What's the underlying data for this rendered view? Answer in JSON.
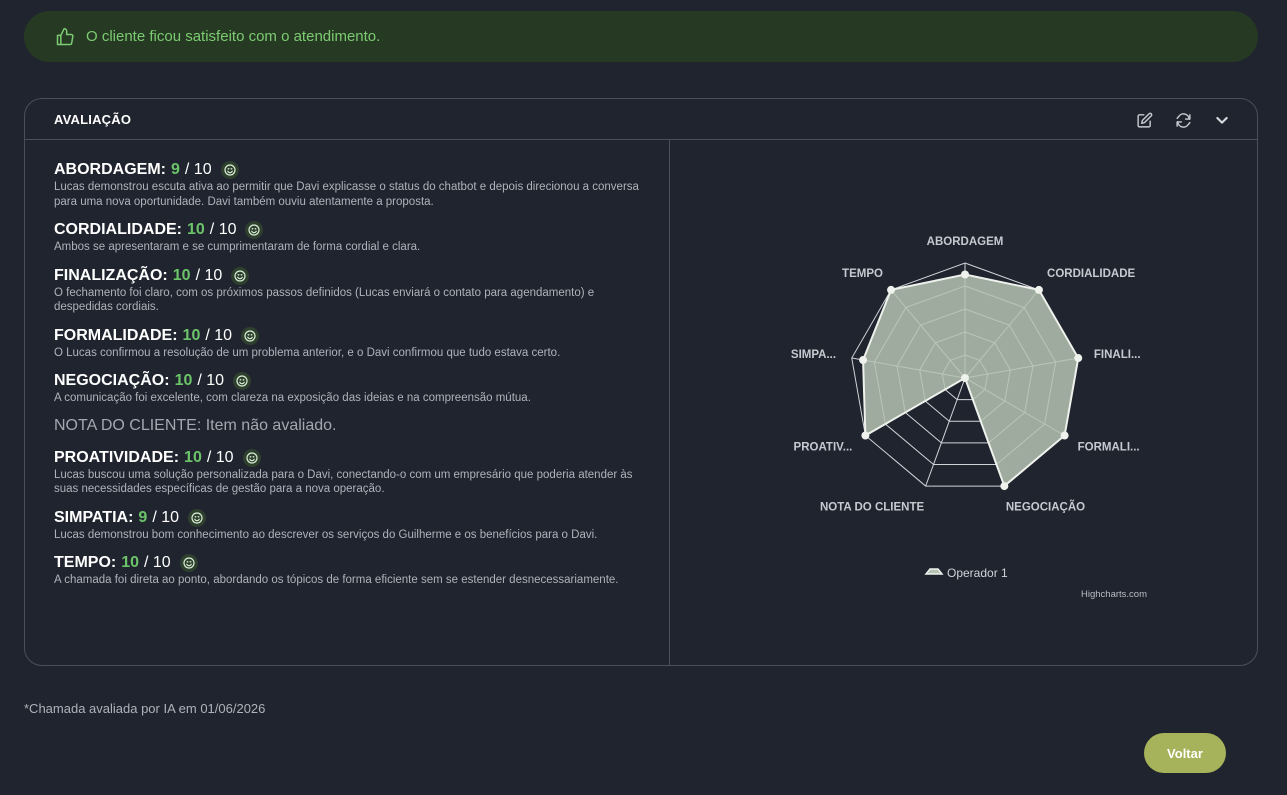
{
  "banner": {
    "text": "O cliente ficou satisfeito com o atendimento.",
    "icon": "thumbs-up-icon"
  },
  "card": {
    "title": "AVALIAÇÃO",
    "actions": [
      "edit-icon",
      "refresh-icon",
      "chevron-down-icon"
    ],
    "items": [
      {
        "label": "ABORDAGEM:",
        "score": "9",
        "max": "/ 10",
        "desc": "Lucas demonstrou escuta ativa ao permitir que Davi explicasse o status do chatbot e depois direcionou a conversa para uma nova oportunidade. Davi também ouviu atentamente a proposta."
      },
      {
        "label": "CORDIALIDADE:",
        "score": "10",
        "max": "/ 10",
        "desc": "Ambos se apresentaram e se cumprimentaram de forma cordial e clara."
      },
      {
        "label": "FINALIZAÇÃO:",
        "score": "10",
        "max": "/ 10",
        "desc": "O fechamento foi claro, com os próximos passos definidos (Lucas enviará o contato para agendamento) e despedidas cordiais."
      },
      {
        "label": "FORMALIDADE:",
        "score": "10",
        "max": "/ 10",
        "desc": "O Lucas confirmou a resolução de um problema anterior, e o Davi confirmou que tudo estava certo."
      },
      {
        "label": "NEGOCIAÇÃO:",
        "score": "10",
        "max": "/ 10",
        "desc": "A comunicação foi excelente, com clareza na exposição das ideias e na compreensão mútua."
      }
    ],
    "not_rated": "NOTA DO CLIENTE: Item não avaliado.",
    "items2": [
      {
        "label": "PROATIVIDADE:",
        "score": "10",
        "max": "/ 10",
        "desc": "Lucas buscou uma solução personalizada para o Davi, conectando-o com um empresário que poderia atender às suas necessidades específicas de gestão para a nova operação."
      },
      {
        "label": "SIMPATIA:",
        "score": "9",
        "max": "/ 10",
        "desc": "Lucas demonstrou bom conhecimento ao descrever os serviços do Guilherme e os benefícios para o Davi."
      },
      {
        "label": "TEMPO:",
        "score": "10",
        "max": "/ 10",
        "desc": "A chamada foi direta ao ponto, abordando os tópicos de forma eficiente sem se estender desnecessariamente."
      }
    ]
  },
  "chart_data": {
    "type": "radar",
    "categories": [
      "ABORDAGEM",
      "CORDIALIDADE",
      "FINALI...",
      "FORMALI...",
      "NEGOCIAÇÃO",
      "NOTA DO CLIENTE",
      "PROATIV...",
      "SIMPA...",
      "TEMPO"
    ],
    "series": [
      {
        "name": "Operador 1",
        "values": [
          9,
          10,
          10,
          10,
          10,
          0,
          10,
          9,
          10
        ]
      }
    ],
    "ylim": [
      0,
      10
    ],
    "grid": true,
    "legend": "bottom",
    "credits": "Highcharts.com",
    "colors": {
      "fill": "#b5c3b2",
      "stroke": "#eef1ec",
      "grid": "#d0d3d8"
    }
  },
  "footer": {
    "note": "*Chamada avaliada por IA em 01/06/2026",
    "back_label": "Voltar"
  }
}
